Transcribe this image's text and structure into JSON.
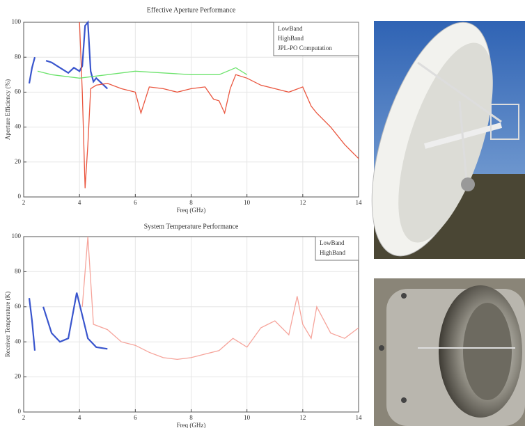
{
  "chart_data": [
    {
      "type": "line",
      "title": "Effective Aperture Performance",
      "x_label": "Freq (GHz)",
      "y_label": "Aperture Efficiency (%)",
      "xlim": [
        2,
        14
      ],
      "xticks": [
        2,
        4,
        6,
        8,
        10,
        12,
        14
      ],
      "ylim": [
        0,
        100
      ],
      "yticks": [
        0,
        20,
        40,
        60,
        80,
        100
      ],
      "grid": true,
      "legend": "upper-right",
      "series": [
        {
          "name": "LowBand",
          "color": "#2343c8",
          "x": [
            2.2,
            2.3,
            2.4,
            2.6,
            2.8,
            3.0,
            3.2,
            3.4,
            3.6,
            3.8,
            4.0,
            4.1,
            4.2,
            4.3,
            4.4,
            4.5,
            4.6,
            4.8,
            5.0
          ],
          "values": [
            65,
            74,
            80,
            null,
            78,
            77,
            75,
            73,
            71,
            74,
            72,
            75,
            98,
            100,
            72,
            66,
            68,
            65,
            62
          ]
        },
        {
          "name": "HighBand",
          "color": "#e8442a",
          "x": [
            4.0,
            4.1,
            4.2,
            4.3,
            4.4,
            4.6,
            5.0,
            5.5,
            6.0,
            6.2,
            6.5,
            7.0,
            7.5,
            8.0,
            8.5,
            8.8,
            9.0,
            9.2,
            9.4,
            9.6,
            10.0,
            10.5,
            11.0,
            11.5,
            12.0,
            12.3,
            12.5,
            13.0,
            13.5,
            14.0
          ],
          "values": [
            100,
            60,
            5,
            30,
            62,
            64,
            65,
            62,
            60,
            48,
            63,
            62,
            60,
            62,
            63,
            56,
            55,
            48,
            62,
            70,
            68,
            64,
            62,
            60,
            63,
            52,
            48,
            40,
            30,
            22
          ]
        },
        {
          "name": "JPL-PO Computation",
          "color": "#5ee05e",
          "x": [
            2.5,
            3.0,
            4.0,
            5.0,
            6.0,
            7.0,
            8.0,
            9.0,
            9.6,
            10.0
          ],
          "values": [
            72,
            70,
            68,
            70,
            72,
            71,
            70,
            70,
            74,
            70
          ]
        }
      ]
    },
    {
      "type": "line",
      "title": "System Temperature Performance",
      "x_label": "Freq (GHz)",
      "y_label": "Receiver Temperature (K)",
      "xlim": [
        2,
        14
      ],
      "xticks": [
        2,
        4,
        6,
        8,
        10,
        12,
        14
      ],
      "ylim": [
        0,
        100
      ],
      "yticks": [
        0,
        20,
        40,
        60,
        80,
        100
      ],
      "grid": true,
      "legend": "upper-right",
      "series": [
        {
          "name": "LowBand",
          "color": "#2343c8",
          "x": [
            2.2,
            2.3,
            2.4,
            2.6,
            2.7,
            3.0,
            3.3,
            3.6,
            3.9,
            4.1,
            4.3,
            4.6,
            5.0
          ],
          "values": [
            65,
            52,
            35,
            null,
            60,
            45,
            40,
            42,
            68,
            55,
            42,
            37,
            36
          ]
        },
        {
          "name": "HighBand",
          "color": "#f59a90",
          "x": [
            4.1,
            4.3,
            4.5,
            5.0,
            5.5,
            6.0,
            6.5,
            7.0,
            7.5,
            8.0,
            8.5,
            9.0,
            9.5,
            10.0,
            10.5,
            11.0,
            11.5,
            11.8,
            12.0,
            12.3,
            12.5,
            13.0,
            13.5,
            14.0
          ],
          "values": [
            60,
            100,
            50,
            47,
            40,
            38,
            34,
            31,
            30,
            31,
            33,
            35,
            42,
            37,
            48,
            52,
            44,
            66,
            50,
            42,
            60,
            45,
            42,
            48
          ]
        }
      ]
    }
  ]
}
